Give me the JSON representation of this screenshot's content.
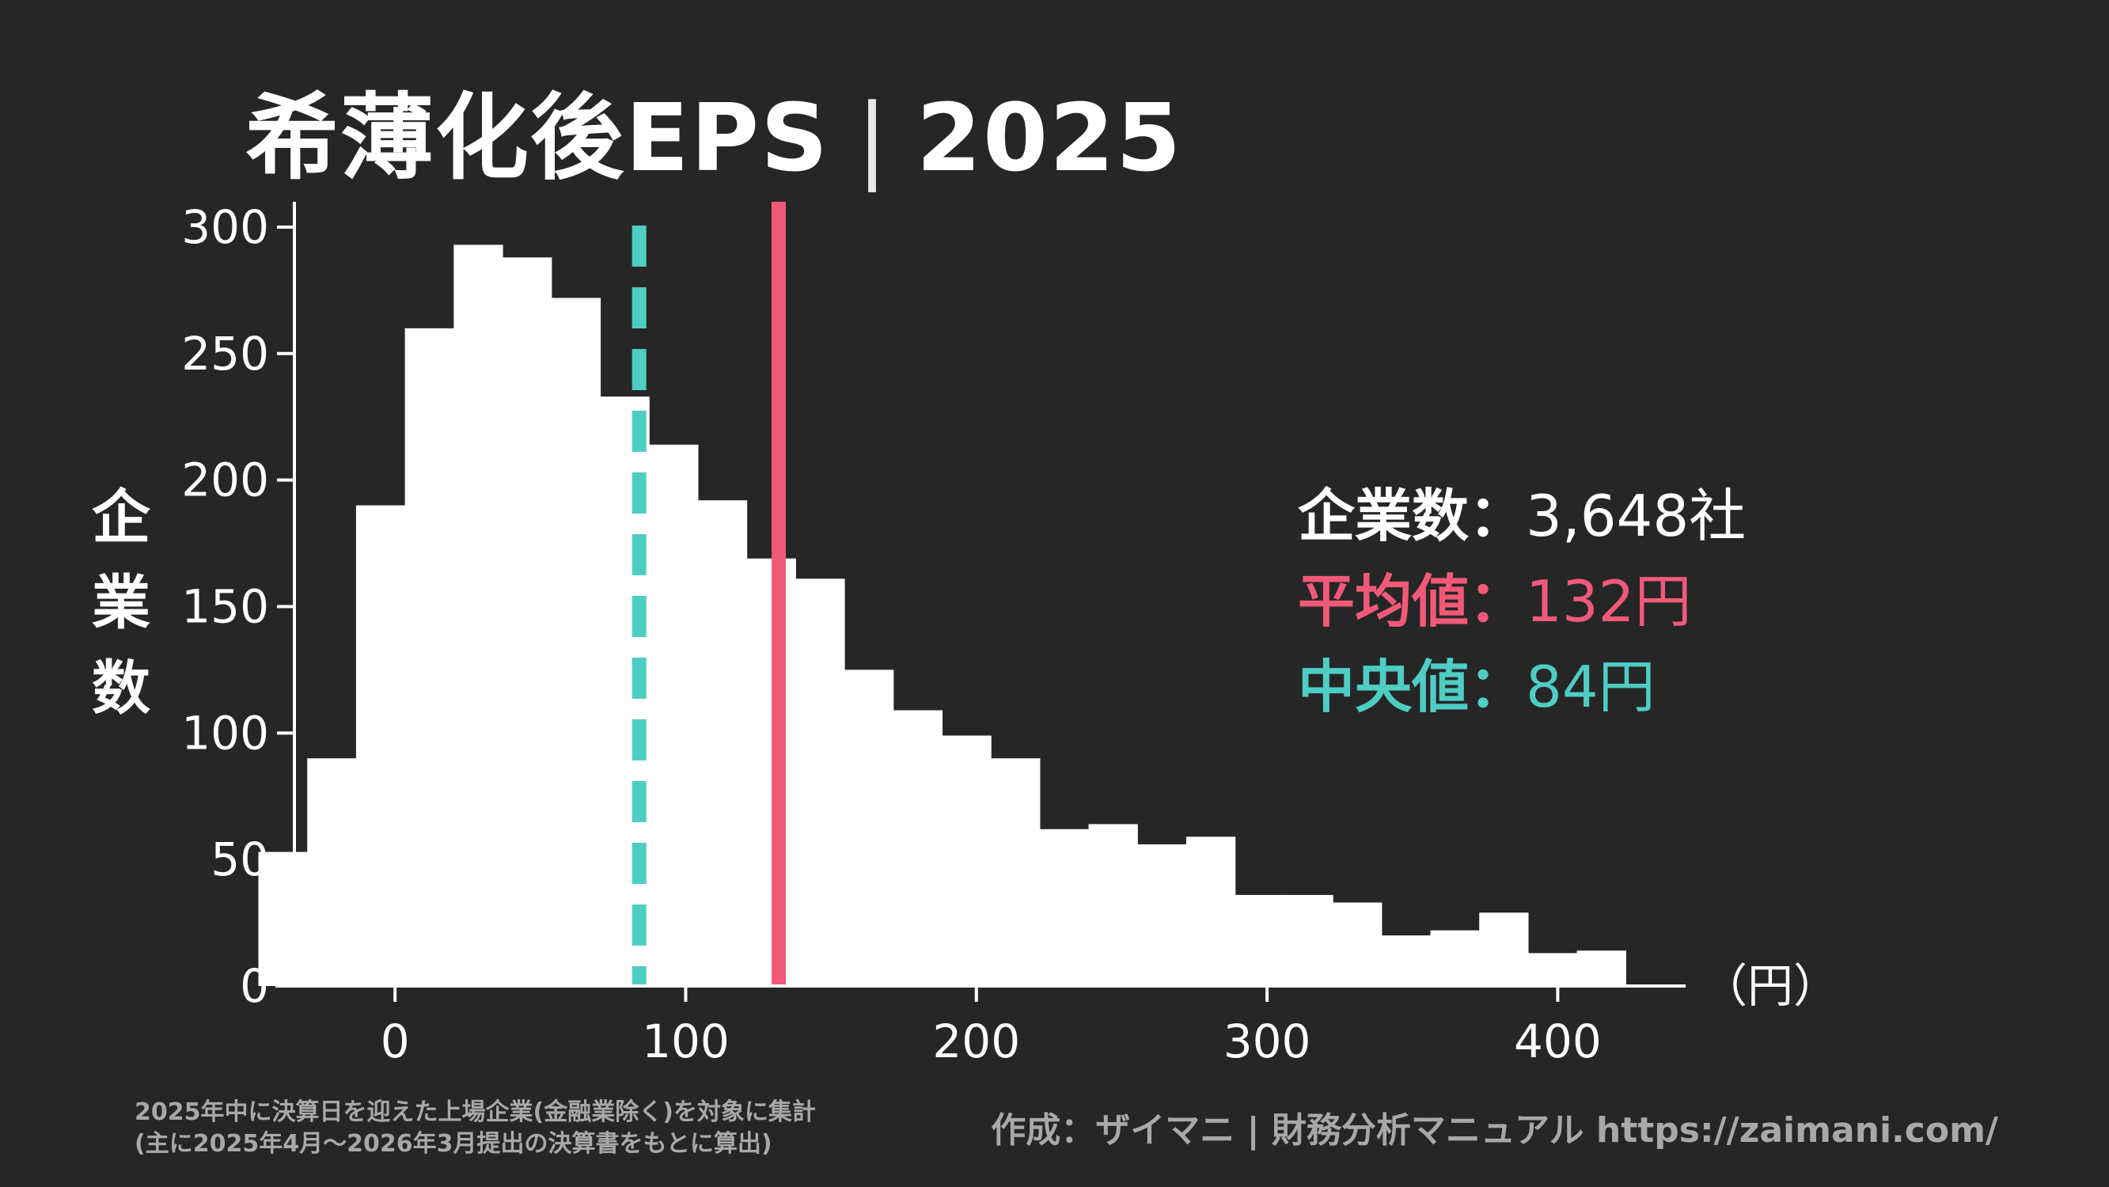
{
  "title": {
    "main": "希薄化後EPS",
    "separator": "|",
    "year": "2025"
  },
  "ylabel": "企業数",
  "xunit": "（円）",
  "stats": {
    "count_label": "企業数：",
    "count_value": "3,648社",
    "mean_label": "平均値：",
    "mean_value": "132円",
    "median_label": "中央値：",
    "median_value": "84円"
  },
  "footnote": {
    "line1": "2025年中に決算日を迎えた上場企業(金融業除く)を対象に集計",
    "line2": "(主に2025年4月〜2026年3月提出の決算書をもとに算出)"
  },
  "credit": "作成：ザイマニ | 財務分析マニュアル https://zaimani.com/",
  "colors": {
    "background": "#262626",
    "bars": "#ffffff",
    "mean": "#f05a78",
    "median": "#4ecdc4",
    "text": "#ffffff",
    "muted": "#a8a8a8"
  },
  "chart_data": {
    "type": "bar",
    "subtype": "histogram",
    "title": "希薄化後EPS｜2025",
    "xlabel": "（円）",
    "ylabel": "企業数",
    "xlim": [
      -76,
      444
    ],
    "ylim": [
      0,
      310
    ],
    "xticks": [
      0,
      100,
      200,
      300,
      400
    ],
    "yticks": [
      0,
      50,
      100,
      150,
      200,
      250,
      300
    ],
    "bin_start": -47,
    "bin_width": 16.8,
    "values": [
      53,
      90,
      190,
      260,
      293,
      288,
      272,
      233,
      214,
      192,
      169,
      161,
      125,
      109,
      99,
      90,
      62,
      64,
      56,
      59,
      36,
      36,
      33,
      20,
      22,
      29,
      13,
      14
    ],
    "reference_lines": [
      {
        "name": "平均値",
        "x": 132,
        "style": "solid",
        "color": "#f05a78"
      },
      {
        "name": "中央値",
        "x": 84,
        "style": "dashed",
        "color": "#4ecdc4"
      }
    ]
  }
}
